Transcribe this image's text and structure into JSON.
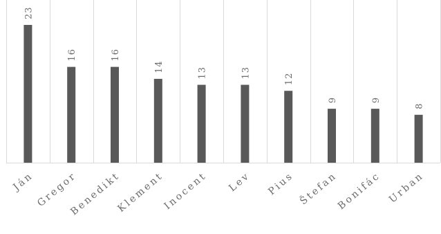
{
  "chart_data": {
    "type": "bar",
    "categories": [
      "Ján",
      "Gregor",
      "Benedikt",
      "Klement",
      "Inocent",
      "Lev",
      "Pius",
      "Štefan",
      "Bonifác",
      "Urban"
    ],
    "values": [
      23,
      16,
      16,
      14,
      13,
      13,
      12,
      9,
      9,
      8
    ],
    "data_labels": [
      "23",
      "16",
      "16",
      "14",
      "13",
      "13",
      "12",
      "9",
      "9",
      "8"
    ],
    "ylim": [
      0,
      23
    ],
    "grid": "vertical-category",
    "legend": "none",
    "bar_color": "#595959",
    "grid_color": "#d9d9d9",
    "text_color": "#6b6b6b"
  }
}
